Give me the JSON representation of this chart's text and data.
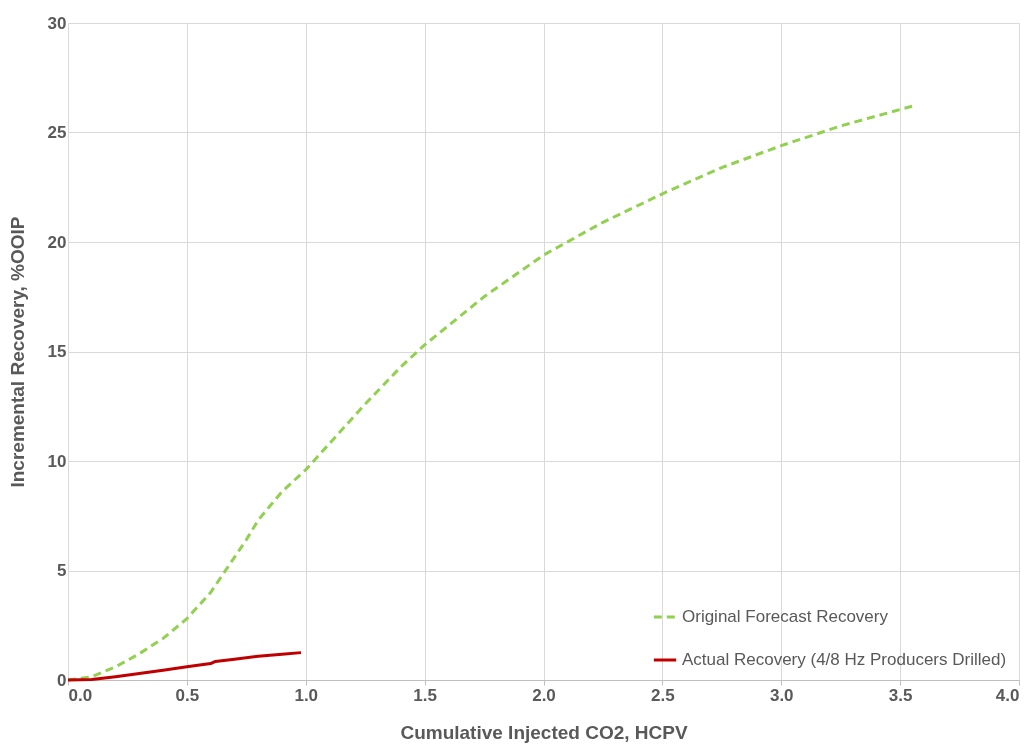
{
  "chart_data": {
    "type": "line",
    "xlabel": "Cumulative Injected CO2, HCPV",
    "ylabel": "Incremental Recovery, %OOIP",
    "xlim": [
      0,
      4
    ],
    "ylim": [
      0,
      30
    ],
    "xticks": [
      {
        "value": 0,
        "label": "0.0"
      },
      {
        "value": 0.5,
        "label": "0.5"
      },
      {
        "value": 1,
        "label": "1.0"
      },
      {
        "value": 1.5,
        "label": "1.5"
      },
      {
        "value": 2,
        "label": "2.0"
      },
      {
        "value": 2.5,
        "label": "2.5"
      },
      {
        "value": 3,
        "label": "3.0"
      },
      {
        "value": 3.5,
        "label": "3.5"
      },
      {
        "value": 4,
        "label": "4.0"
      }
    ],
    "yticks": [
      0,
      5,
      10,
      15,
      20,
      25,
      30
    ],
    "grid": true,
    "legend": "bottom right",
    "marker": "none",
    "series": [
      {
        "name": "Original Forecast Recovery",
        "color": "#92d050",
        "line_style": "dashed",
        "x": [
          0,
          0.1,
          0.2,
          0.3,
          0.4,
          0.5,
          0.6,
          0.7,
          0.75,
          0.8,
          0.9,
          1.0,
          1.1,
          1.25,
          1.4,
          1.5,
          1.75,
          2.0,
          2.25,
          2.5,
          2.75,
          3.0,
          3.25,
          3.55
        ],
        "values": [
          0,
          0.15,
          0.6,
          1.2,
          1.9,
          2.8,
          4.0,
          5.6,
          6.4,
          7.3,
          8.6,
          9.6,
          10.8,
          12.6,
          14.3,
          15.3,
          17.5,
          19.4,
          20.9,
          22.2,
          23.4,
          24.4,
          25.3,
          26.2
        ]
      },
      {
        "name": "Actual Recovery (4/8 Hz Producers Drilled)",
        "color": "#c00000",
        "line_style": "solid",
        "x": [
          0,
          0.1,
          0.2,
          0.3,
          0.4,
          0.5,
          0.6,
          0.62,
          0.7,
          0.8,
          0.9,
          0.98
        ],
        "values": [
          0,
          0.02,
          0.15,
          0.3,
          0.45,
          0.6,
          0.75,
          0.85,
          0.95,
          1.08,
          1.18,
          1.25
        ]
      }
    ]
  }
}
